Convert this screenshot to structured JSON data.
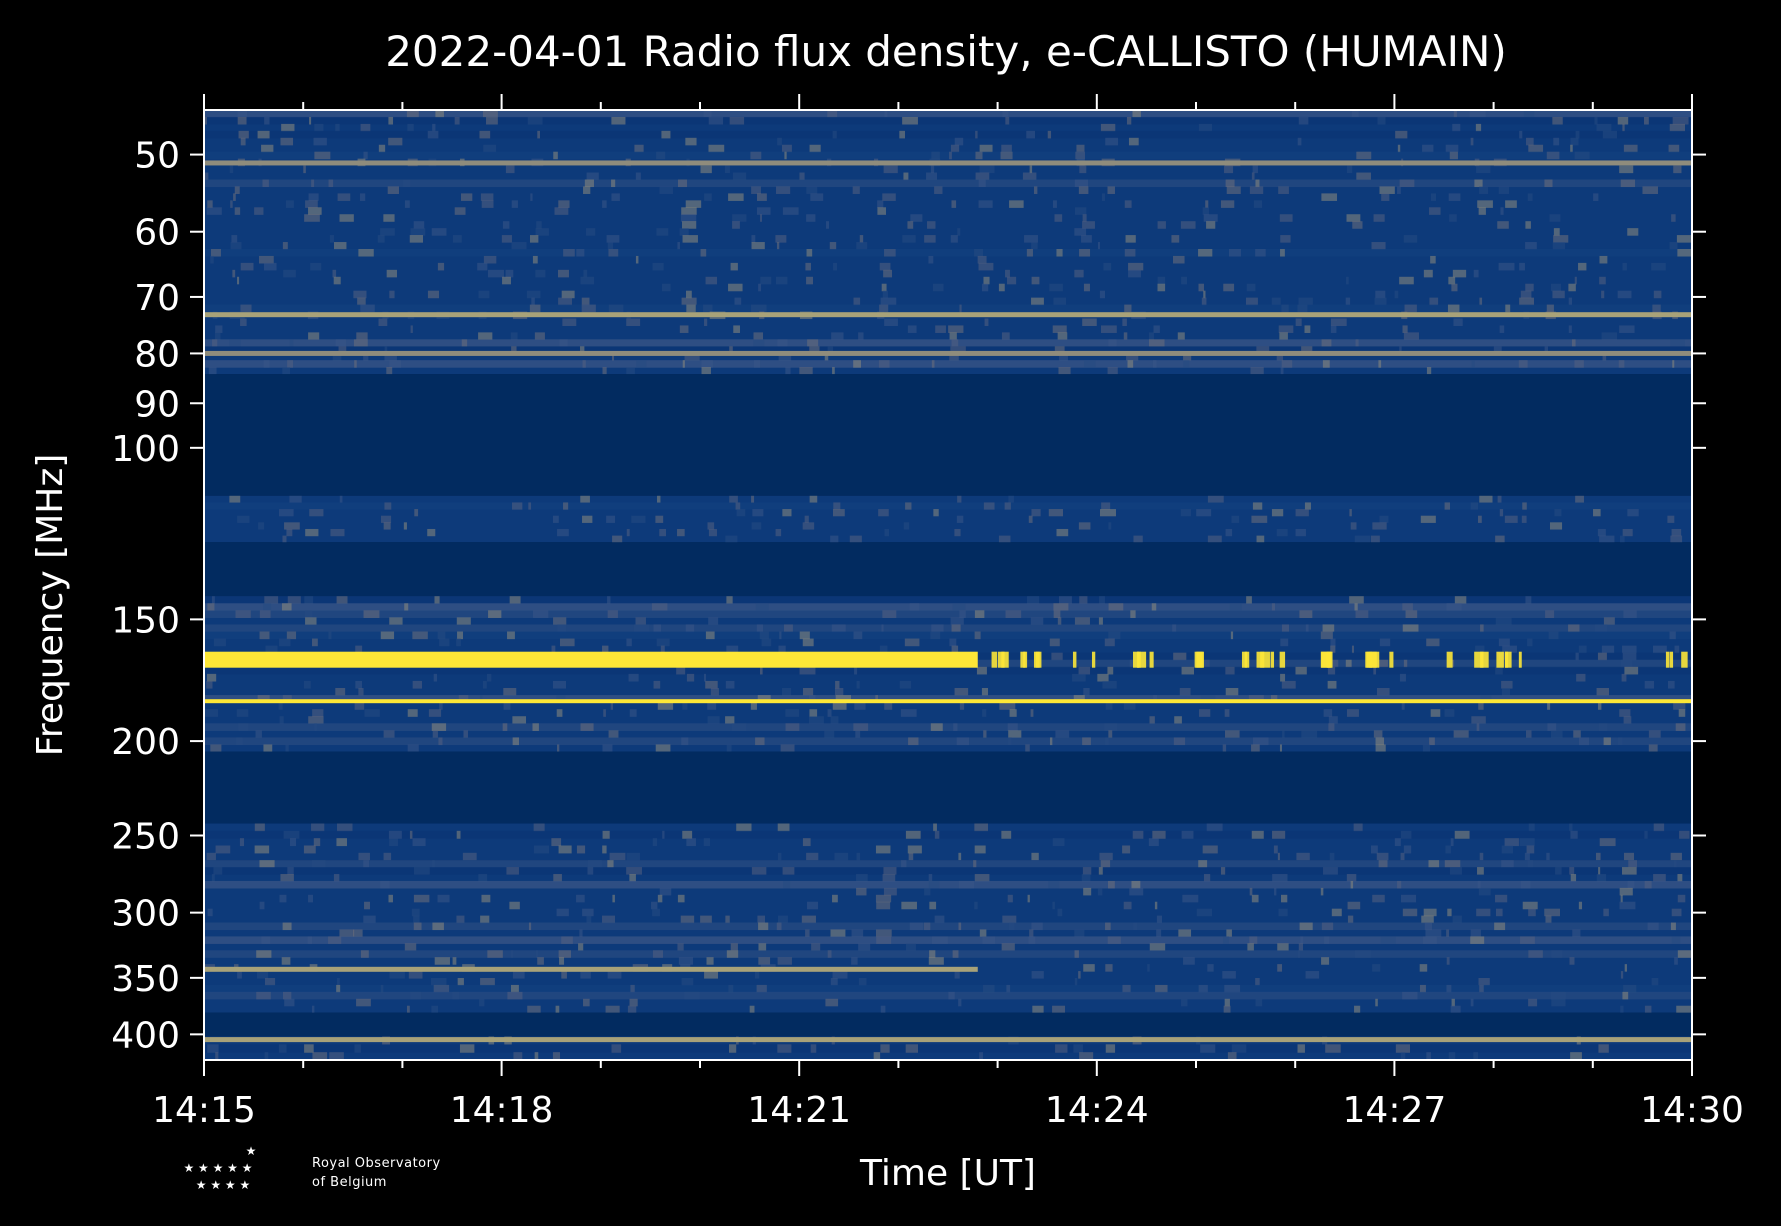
{
  "chart_data": {
    "type": "heatmap",
    "title": "2022-04-01 Radio flux density, e-CALLISTO (HUMAIN)",
    "xlabel": "Time [UT]",
    "ylabel": "Frequency [MHz]",
    "x_ticks": [
      "14:15",
      "14:18",
      "14:21",
      "14:24",
      "14:27",
      "14:30"
    ],
    "x_tick_minutes": [
      0,
      3,
      6,
      9,
      12,
      15
    ],
    "x_range_minutes": [
      0,
      15
    ],
    "y_scale": "log",
    "y_range": [
      45,
      425
    ],
    "y_ticks": [
      50,
      60,
      70,
      80,
      90,
      100,
      150,
      200,
      250,
      300,
      350,
      400
    ],
    "colormap": "cividis",
    "colors": {
      "background": "#000000",
      "low": "#00224e",
      "mid": "#7c7b78",
      "high": "#fde737"
    },
    "bands": [
      {
        "f0": 45,
        "f1": 84,
        "level": "noisy"
      },
      {
        "f0": 84,
        "f1": 112,
        "level": "flat"
      },
      {
        "f0": 112,
        "f1": 125,
        "level": "noisy"
      },
      {
        "f0": 125,
        "f1": 142,
        "level": "flat"
      },
      {
        "f0": 142,
        "f1": 205,
        "level": "noisy"
      },
      {
        "f0": 205,
        "f1": 243,
        "level": "flat"
      },
      {
        "f0": 243,
        "f1": 265,
        "level": "noisy"
      },
      {
        "f0": 265,
        "f1": 380,
        "level": "noisy"
      },
      {
        "f0": 380,
        "f1": 402,
        "level": "flat"
      },
      {
        "f0": 402,
        "f1": 425,
        "level": "noisy"
      }
    ],
    "bright_lines": [
      {
        "f": 165,
        "until_minute": 7.8,
        "color": "#fde737"
      },
      {
        "f": 182,
        "until_minute": 15,
        "color": "#fde737"
      },
      {
        "f": 73,
        "until_minute": 15,
        "color": "#a8a279"
      },
      {
        "f": 51,
        "until_minute": 15,
        "color": "#8f8c7c"
      },
      {
        "f": 80,
        "until_minute": 15,
        "color": "#8f8c7c"
      },
      {
        "f": 343,
        "until_minute": 7.8,
        "color": "#a8a279"
      },
      {
        "f": 405,
        "until_minute": 15,
        "color": "#a8a279"
      }
    ]
  },
  "logo": {
    "line1": "Royal Observatory",
    "line2": "of Belgium"
  }
}
